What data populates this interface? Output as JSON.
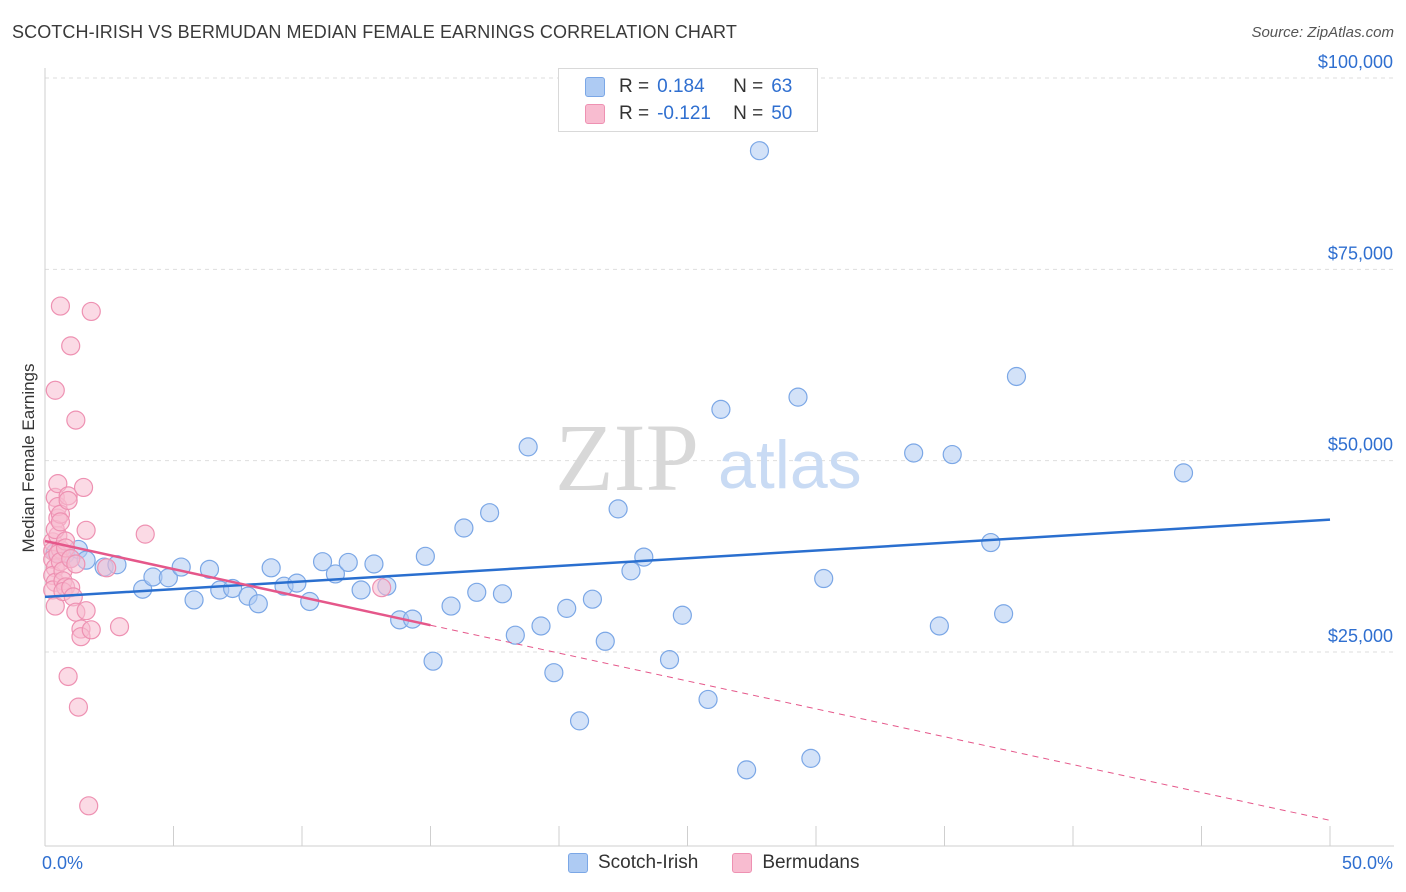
{
  "header": {
    "title": "SCOTCH-IRISH VS BERMUDAN MEDIAN FEMALE EARNINGS CORRELATION CHART",
    "source": "Source: ZipAtlas.com"
  },
  "legend": {
    "rows": [
      {
        "r_label": "R =",
        "r_value": "0.184",
        "n_label": "N =",
        "n_value": "63"
      },
      {
        "r_label": "R =",
        "r_value": "-0.121",
        "n_label": "N =",
        "n_value": "50"
      }
    ]
  },
  "watermark": {
    "zip": "ZIP",
    "atlas": "atlas"
  },
  "colors": {
    "blue_fill": "#aecbf3",
    "blue_stroke": "#7ba7e6",
    "blue_line": "#2a6fcf",
    "pink_fill": "#f8bcd0",
    "pink_stroke": "#ee91b2",
    "pink_line": "#e5578a",
    "tick_label": "#2f6fd0",
    "grid": "#dedede"
  },
  "chart_data": {
    "type": "scatter",
    "ylabel": "Median Female Earnings",
    "xlim": [
      0,
      50
    ],
    "ylim": [
      0,
      105000
    ],
    "x_tick_labels": [
      "0.0%",
      "50.0%"
    ],
    "y_ticks": [
      {
        "value": 25000,
        "label": "$25,000"
      },
      {
        "value": 50000,
        "label": "$50,000"
      },
      {
        "value": 75000,
        "label": "$75,000"
      },
      {
        "value": 100000,
        "label": "$100,000"
      }
    ],
    "grid": true,
    "legend_position": "bottom",
    "series": [
      {
        "name": "Scotch-Irish",
        "color": "#aecbf3",
        "trend": {
          "x": [
            0,
            50
          ],
          "y": [
            32200,
            42300
          ]
        },
        "points": [
          [
            0.4,
            38000
          ],
          [
            0.8,
            37800
          ],
          [
            1.0,
            37200
          ],
          [
            1.3,
            38400
          ],
          [
            1.6,
            37000
          ],
          [
            2.3,
            36100
          ],
          [
            2.8,
            36400
          ],
          [
            3.8,
            33200
          ],
          [
            4.2,
            34800
          ],
          [
            4.8,
            34700
          ],
          [
            5.3,
            36100
          ],
          [
            5.8,
            31800
          ],
          [
            6.4,
            35800
          ],
          [
            6.8,
            33100
          ],
          [
            7.3,
            33300
          ],
          [
            7.9,
            32300
          ],
          [
            8.3,
            31300
          ],
          [
            8.8,
            36000
          ],
          [
            9.3,
            33600
          ],
          [
            9.8,
            34000
          ],
          [
            10.3,
            31600
          ],
          [
            10.8,
            36800
          ],
          [
            11.3,
            35200
          ],
          [
            11.8,
            36700
          ],
          [
            12.3,
            33100
          ],
          [
            12.8,
            36500
          ],
          [
            13.3,
            33600
          ],
          [
            13.8,
            29200
          ],
          [
            14.3,
            29300
          ],
          [
            14.8,
            37500
          ],
          [
            15.1,
            23800
          ],
          [
            15.8,
            31000
          ],
          [
            16.3,
            41200
          ],
          [
            16.8,
            32800
          ],
          [
            17.3,
            43200
          ],
          [
            17.8,
            32600
          ],
          [
            18.3,
            27200
          ],
          [
            18.8,
            51800
          ],
          [
            19.3,
            28400
          ],
          [
            19.8,
            22300
          ],
          [
            20.3,
            30700
          ],
          [
            20.8,
            16000
          ],
          [
            21.3,
            31900
          ],
          [
            21.8,
            26400
          ],
          [
            22.3,
            43700
          ],
          [
            22.8,
            35600
          ],
          [
            23.3,
            37400
          ],
          [
            24.3,
            24000
          ],
          [
            24.8,
            29800
          ],
          [
            25.8,
            18800
          ],
          [
            26.3,
            56700
          ],
          [
            27.3,
            9600
          ],
          [
            27.8,
            90500
          ],
          [
            29.3,
            58300
          ],
          [
            29.8,
            11100
          ],
          [
            30.3,
            34600
          ],
          [
            33.8,
            51000
          ],
          [
            34.8,
            28400
          ],
          [
            35.3,
            50800
          ],
          [
            36.8,
            39300
          ],
          [
            37.3,
            30000
          ],
          [
            37.8,
            61000
          ],
          [
            44.3,
            48400
          ]
        ]
      },
      {
        "name": "Bermudans",
        "color": "#f8bcd0",
        "trend": {
          "x": [
            0,
            15
          ],
          "y": [
            39500,
            28500
          ]
        },
        "trend_dashed": {
          "x": [
            15,
            50
          ],
          "y": [
            28500,
            3000
          ]
        },
        "points": [
          [
            0.3,
            39400
          ],
          [
            0.3,
            38200
          ],
          [
            0.3,
            37100
          ],
          [
            0.4,
            36000
          ],
          [
            0.3,
            35000
          ],
          [
            0.4,
            34100
          ],
          [
            0.3,
            33100
          ],
          [
            0.4,
            31000
          ],
          [
            0.4,
            45200
          ],
          [
            0.5,
            42500
          ],
          [
            0.5,
            40200
          ],
          [
            0.4,
            41000
          ],
          [
            0.6,
            70200
          ],
          [
            0.4,
            59200
          ],
          [
            0.5,
            47000
          ],
          [
            0.5,
            44000
          ],
          [
            0.6,
            43000
          ],
          [
            0.6,
            38400
          ],
          [
            0.5,
            37800
          ],
          [
            0.6,
            36800
          ],
          [
            0.7,
            35600
          ],
          [
            0.7,
            34300
          ],
          [
            0.8,
            33500
          ],
          [
            0.7,
            32900
          ],
          [
            0.9,
            45400
          ],
          [
            0.9,
            44800
          ],
          [
            0.6,
            42000
          ],
          [
            0.8,
            39500
          ],
          [
            0.8,
            38600
          ],
          [
            0.9,
            21800
          ],
          [
            1.0,
            65000
          ],
          [
            1.0,
            37200
          ],
          [
            1.0,
            33400
          ],
          [
            1.2,
            55300
          ],
          [
            1.2,
            36500
          ],
          [
            1.1,
            32200
          ],
          [
            1.2,
            30200
          ],
          [
            1.3,
            17800
          ],
          [
            1.4,
            28000
          ],
          [
            1.4,
            27000
          ],
          [
            1.5,
            46500
          ],
          [
            1.6,
            40900
          ],
          [
            1.6,
            30400
          ],
          [
            1.7,
            4900
          ],
          [
            1.8,
            69500
          ],
          [
            1.8,
            27900
          ],
          [
            2.4,
            36000
          ],
          [
            2.9,
            28300
          ],
          [
            3.9,
            40400
          ],
          [
            13.1,
            33400
          ]
        ]
      }
    ]
  }
}
